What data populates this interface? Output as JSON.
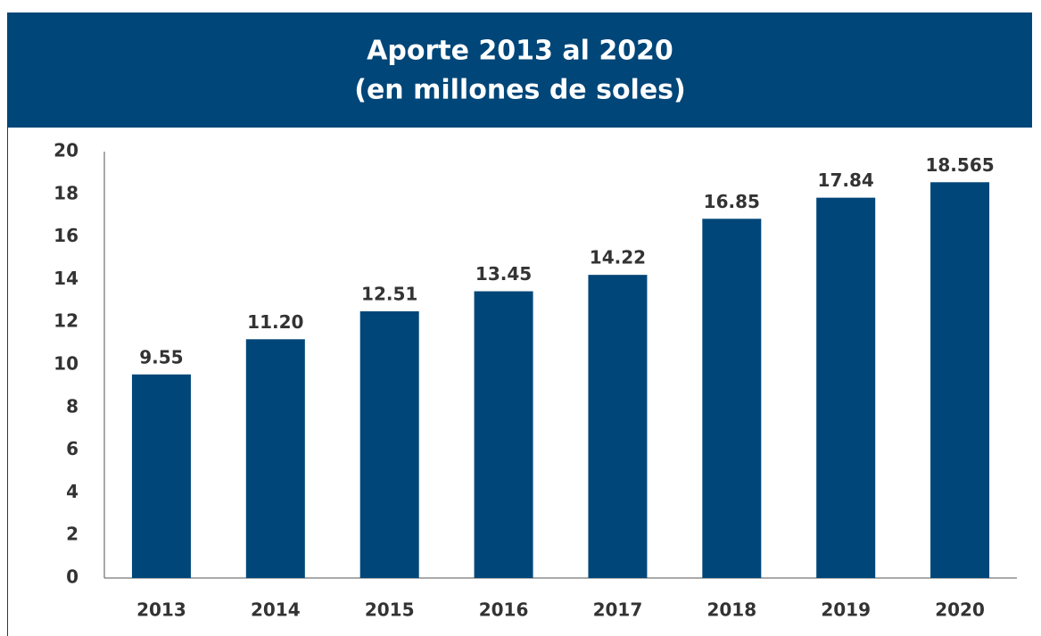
{
  "chart_data": {
    "type": "bar",
    "title": "Aporte 2013 al 2020",
    "subtitle": "(en millones de soles)",
    "categories": [
      "2013",
      "2014",
      "2015",
      "2016",
      "2017",
      "2018",
      "2019",
      "2020"
    ],
    "values": [
      9.55,
      11.2,
      12.51,
      13.45,
      14.22,
      16.85,
      17.84,
      18.565
    ],
    "value_labels": [
      "9.55",
      "11.20",
      "12.51",
      "13.45",
      "14.22",
      "16.85",
      "17.84",
      "18.565"
    ],
    "color": "#004678",
    "ylim": [
      0,
      20
    ],
    "yticks": [
      0,
      2,
      4,
      6,
      8,
      10,
      12,
      14,
      16,
      18,
      20
    ],
    "grid": false
  }
}
